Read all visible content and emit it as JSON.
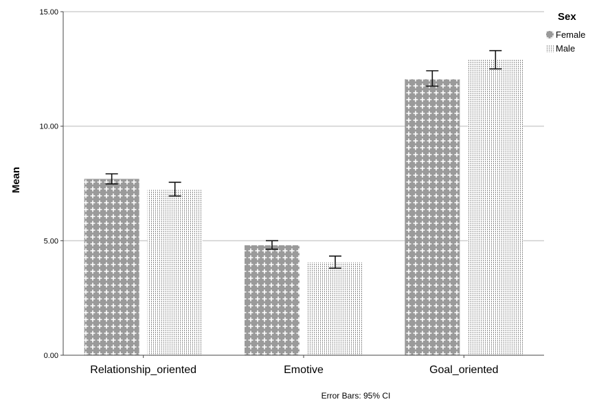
{
  "chart_data": {
    "type": "bar",
    "categories": [
      "Relationship_oriented",
      "Emotive",
      "Goal_oriented"
    ],
    "series": [
      {
        "name": "Female",
        "values": [
          7.7,
          4.8,
          12.05
        ],
        "ci_low": [
          7.48,
          4.63,
          11.75
        ],
        "ci_high": [
          7.92,
          5.0,
          12.42
        ],
        "pattern": "cross-hatch",
        "color": "#8c8c8c"
      },
      {
        "name": "Male",
        "values": [
          7.22,
          4.05,
          12.9
        ],
        "ci_low": [
          6.95,
          3.8,
          12.5
        ],
        "ci_high": [
          7.55,
          4.33,
          13.3
        ],
        "pattern": "dotted-vertical",
        "color": "#9a9a9a"
      }
    ],
    "ylabel": "Mean",
    "xlabel": "",
    "ylim": [
      0,
      15
    ],
    "yticks": [
      "0.00",
      "5.00",
      "10.00",
      "15.00"
    ],
    "ytick_values": [
      0,
      5,
      10,
      15
    ],
    "legend_title": "Sex",
    "legend_position": "top-right",
    "gridlines": true,
    "footnote": "Error Bars: 95% CI"
  }
}
